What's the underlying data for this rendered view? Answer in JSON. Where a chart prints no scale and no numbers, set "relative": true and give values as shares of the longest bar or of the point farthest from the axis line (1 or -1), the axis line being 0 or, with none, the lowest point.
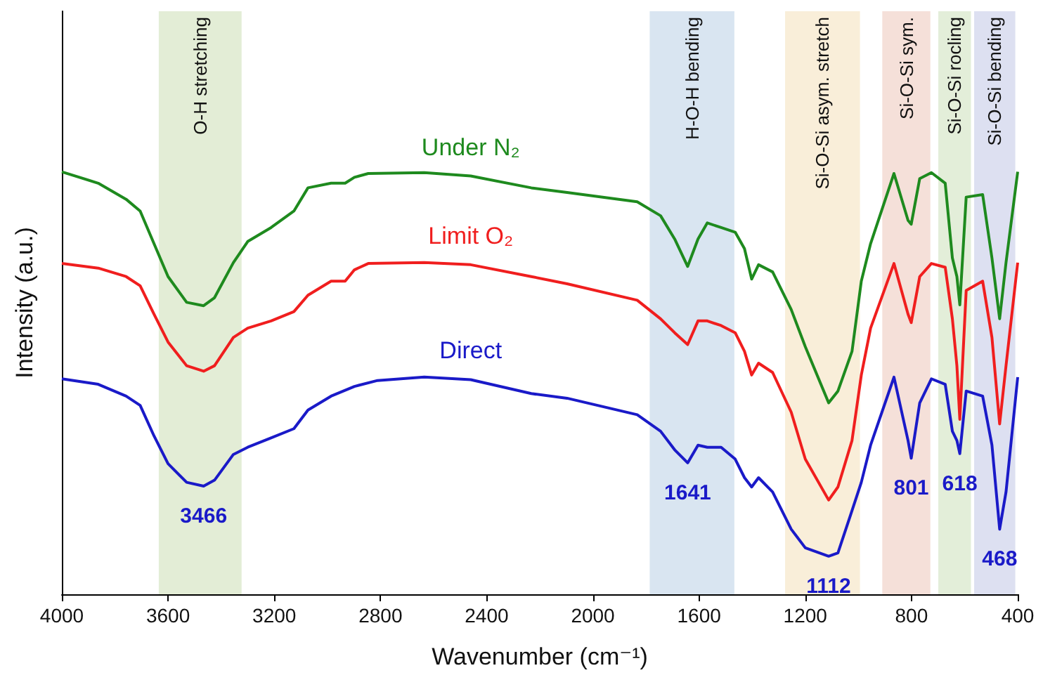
{
  "chart_data": {
    "type": "line",
    "relative": true,
    "xlabel": "Wavenumber (cm⁻¹)",
    "ylabel": "Intensity (a.u.)",
    "xlim": [
      4000,
      400
    ],
    "xticks": [
      4000,
      3600,
      3200,
      2800,
      2400,
      2000,
      1600,
      1200,
      800,
      400
    ],
    "grid": false,
    "legend": false,
    "marker": "none",
    "line_style": "solid",
    "series": [
      {
        "name": "Under N₂",
        "color": "#1e8a1e",
        "x": [
          4000,
          3863,
          3758,
          3705,
          3653,
          3600,
          3530,
          3466,
          3425,
          3354,
          3300,
          3212,
          3126,
          3073,
          2986,
          2933,
          2898,
          2846,
          2635,
          2460,
          2232,
          2097,
          1833,
          1745,
          1692,
          1643,
          1604,
          1569,
          1517,
          1464,
          1429,
          1402,
          1376,
          1323,
          1253,
          1200,
          1112,
          1077,
          1024,
          989,
          954,
          866,
          813,
          801,
          769,
          725,
          673,
          646,
          629,
          618,
          594,
          532,
          497,
          468,
          444,
          400
        ],
        "values": [
          1.0,
          0.973,
          0.935,
          0.907,
          0.83,
          0.752,
          0.691,
          0.683,
          0.702,
          0.785,
          0.835,
          0.868,
          0.907,
          0.962,
          0.973,
          0.973,
          0.987,
          0.996,
          0.998,
          0.99,
          0.962,
          0.951,
          0.929,
          0.896,
          0.841,
          0.776,
          0.841,
          0.879,
          0.868,
          0.857,
          0.818,
          0.746,
          0.78,
          0.763,
          0.674,
          0.586,
          0.453,
          0.481,
          0.575,
          0.741,
          0.83,
          0.996,
          0.885,
          0.876,
          0.984,
          0.998,
          0.973,
          0.796,
          0.752,
          0.685,
          0.94,
          0.946,
          0.796,
          0.652,
          0.785,
          1.0
        ]
      },
      {
        "name": "Limit O₂",
        "color": "#f01e1e",
        "x": [
          4000,
          3863,
          3758,
          3705,
          3653,
          3600,
          3530,
          3466,
          3425,
          3354,
          3300,
          3212,
          3126,
          3073,
          2986,
          2933,
          2898,
          2846,
          2635,
          2460,
          2232,
          2097,
          1833,
          1745,
          1692,
          1643,
          1604,
          1569,
          1517,
          1464,
          1429,
          1402,
          1376,
          1323,
          1253,
          1200,
          1112,
          1077,
          1024,
          989,
          954,
          866,
          813,
          801,
          769,
          725,
          673,
          646,
          629,
          618,
          594,
          532,
          497,
          468,
          444,
          400
        ],
        "values": [
          0.783,
          0.772,
          0.752,
          0.73,
          0.663,
          0.597,
          0.541,
          0.528,
          0.541,
          0.608,
          0.63,
          0.647,
          0.669,
          0.708,
          0.741,
          0.741,
          0.768,
          0.783,
          0.785,
          0.78,
          0.752,
          0.735,
          0.696,
          0.652,
          0.619,
          0.591,
          0.647,
          0.647,
          0.636,
          0.619,
          0.575,
          0.519,
          0.547,
          0.525,
          0.431,
          0.32,
          0.223,
          0.254,
          0.364,
          0.519,
          0.63,
          0.783,
          0.663,
          0.643,
          0.752,
          0.783,
          0.774,
          0.652,
          0.541,
          0.414,
          0.719,
          0.741,
          0.608,
          0.403,
          0.541,
          0.785
        ]
      },
      {
        "name": "Direct",
        "color": "#1a1ac8",
        "x": [
          4000,
          3863,
          3758,
          3705,
          3653,
          3600,
          3530,
          3466,
          3425,
          3354,
          3300,
          3212,
          3126,
          3073,
          2986,
          2898,
          2811,
          2635,
          2460,
          2232,
          2097,
          1833,
          1745,
          1692,
          1643,
          1604,
          1569,
          1517,
          1464,
          1429,
          1402,
          1376,
          1323,
          1253,
          1200,
          1112,
          1077,
          1024,
          989,
          954,
          866,
          813,
          801,
          769,
          725,
          673,
          646,
          629,
          618,
          594,
          532,
          497,
          468,
          444,
          400
        ],
        "values": [
          0.51,
          0.497,
          0.469,
          0.447,
          0.375,
          0.309,
          0.265,
          0.256,
          0.27,
          0.331,
          0.348,
          0.37,
          0.392,
          0.436,
          0.469,
          0.492,
          0.506,
          0.514,
          0.508,
          0.475,
          0.464,
          0.425,
          0.386,
          0.342,
          0.311,
          0.353,
          0.348,
          0.348,
          0.32,
          0.276,
          0.254,
          0.276,
          0.242,
          0.154,
          0.11,
          0.09,
          0.098,
          0.198,
          0.265,
          0.353,
          0.514,
          0.364,
          0.322,
          0.453,
          0.51,
          0.497,
          0.386,
          0.364,
          0.333,
          0.481,
          0.469,
          0.353,
          0.154,
          0.242,
          0.514
        ]
      }
    ],
    "bands": [
      {
        "axis": "x",
        "from": 3635,
        "to": 3323,
        "label": "O-H stretching",
        "color": "#dce8cc"
      },
      {
        "axis": "x",
        "from": 1786,
        "to": 1467,
        "label": "H-O-H bending",
        "color": "#d0deee"
      },
      {
        "axis": "x",
        "from": 1276,
        "to": 994,
        "label": "Si-O-Si asym. stretch",
        "color": "#f8ead0"
      },
      {
        "axis": "x",
        "from": 910,
        "to": 729,
        "label": "Si-O-Si sym.",
        "color": "#f2d8d0"
      },
      {
        "axis": "x",
        "from": 699,
        "to": 576,
        "label": "Si-O-Si rocling",
        "color": "#dcead0"
      },
      {
        "axis": "x",
        "from": 564,
        "to": 409,
        "label": "Si-O-Si bending",
        "color": "#d4d8ee"
      }
    ],
    "annotations": [
      {
        "text": "3466",
        "x": 3466,
        "y": 0.256
      },
      {
        "text": "1641",
        "x": 1643,
        "y": 0.311
      },
      {
        "text": "1112",
        "x": 1112,
        "y": 0.09
      },
      {
        "text": "801",
        "x": 801,
        "y": 0.322
      },
      {
        "text": "618",
        "x": 618,
        "y": 0.333
      },
      {
        "text": "468",
        "x": 468,
        "y": 0.154
      }
    ]
  }
}
